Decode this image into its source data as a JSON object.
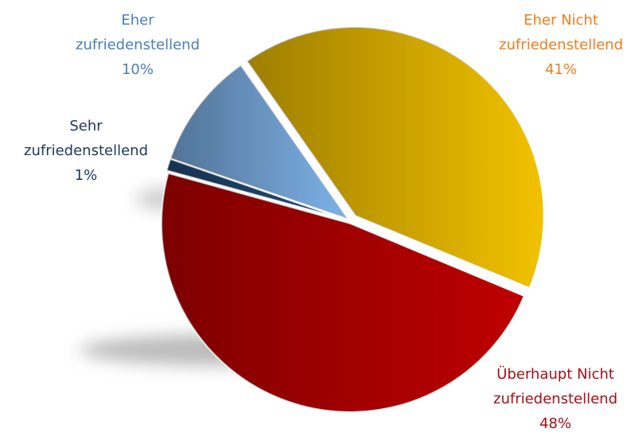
{
  "chart_data": {
    "type": "pie",
    "categories": [
      "Sehr zufriedenstellend",
      "Eher zufriedenstellend",
      "Eher Nicht zufriedenstellend",
      "Überhaupt Nicht zufriedenstellend"
    ],
    "values": [
      1,
      10,
      41,
      48
    ],
    "value_labels": [
      "1%",
      "10%",
      "41%",
      "48%"
    ],
    "colors": [
      "#1f4e79",
      "#7eb2e8",
      "#f2c200",
      "#c00000"
    ],
    "label_colors": [
      "#1f3864",
      "#4a7ebb",
      "#f07c1c",
      "#a50f15"
    ]
  }
}
